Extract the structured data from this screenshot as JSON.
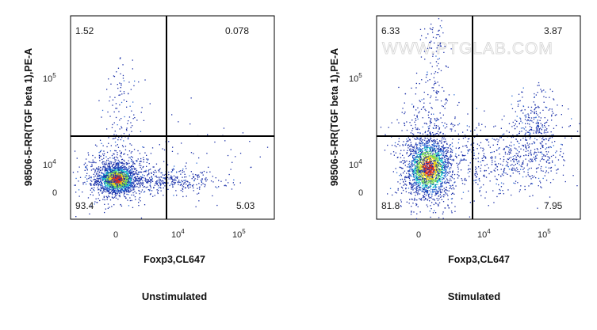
{
  "chart_data": [
    {
      "type": "scatter",
      "title": "Unstimulated",
      "xlabel": "Foxp3,CL647",
      "ylabel": "98506-5-RR(TGF beta 1),PE-A",
      "x_ticks": [
        {
          "base": "0",
          "exp": ""
        },
        {
          "base": "10",
          "exp": "4"
        },
        {
          "base": "10",
          "exp": "5"
        }
      ],
      "y_ticks": [
        {
          "base": "0",
          "exp": ""
        },
        {
          "base": "10",
          "exp": "4"
        },
        {
          "base": "10",
          "exp": "5"
        }
      ],
      "quadrants": {
        "upper_left": "1.52",
        "upper_right": "0.078",
        "lower_left": "93.4",
        "lower_right": "5.03"
      },
      "watermark": ""
    },
    {
      "type": "scatter",
      "title": "Stimulated",
      "xlabel": "Foxp3,CL647",
      "ylabel": "98506-5-RR(TGF beta 1),PE-A",
      "x_ticks": [
        {
          "base": "0",
          "exp": ""
        },
        {
          "base": "10",
          "exp": "4"
        },
        {
          "base": "10",
          "exp": "5"
        }
      ],
      "y_ticks": [
        {
          "base": "0",
          "exp": ""
        },
        {
          "base": "10",
          "exp": "4"
        },
        {
          "base": "10",
          "exp": "5"
        }
      ],
      "quadrants": {
        "upper_left": "6.33",
        "upper_right": "3.87",
        "lower_left": "81.8",
        "lower_right": "7.95"
      },
      "watermark": "WWW.PTGLAB.COM"
    }
  ],
  "colors": {
    "density_low": "#1a2fa8",
    "density_mid": "#13c7c7",
    "density_high": "#e8d21a",
    "density_peak": "#e2351c",
    "gate_line": "#000000"
  }
}
